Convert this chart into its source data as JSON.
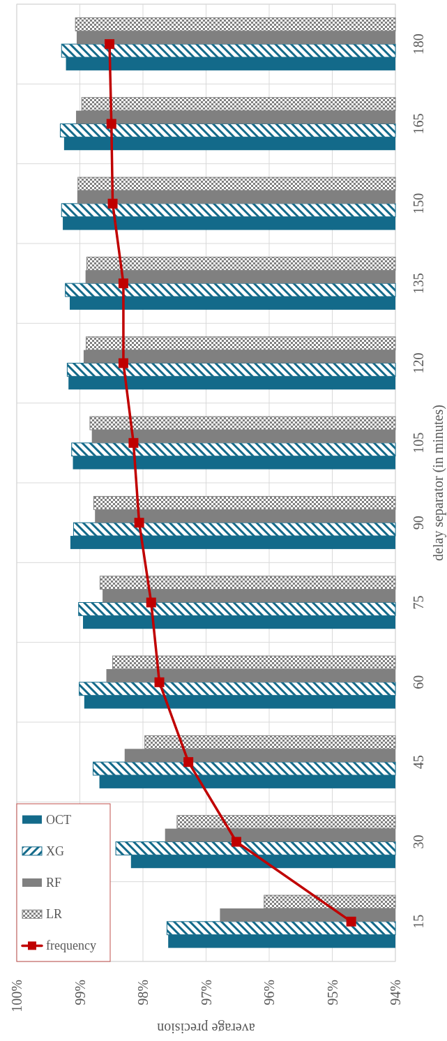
{
  "chart_data": {
    "type": "bar",
    "orientation": "horizontal",
    "xlabel": "average precision",
    "ylabel": "delay separator (in minutes)",
    "categories": [
      "180",
      "165",
      "150",
      "135",
      "120",
      "105",
      "90",
      "75",
      "60",
      "45",
      "30",
      "15"
    ],
    "series": [
      {
        "name": "OCT",
        "color": "#136a8a",
        "values": [
          99.22,
          99.25,
          99.27,
          99.16,
          99.18,
          99.11,
          99.15,
          98.95,
          98.93,
          98.69,
          98.19,
          97.6
        ]
      },
      {
        "name": "XG",
        "color": "#136a8a",
        "values": [
          99.29,
          99.31,
          99.29,
          99.23,
          99.2,
          99.13,
          99.1,
          99.02,
          99.01,
          98.79,
          98.43,
          97.62
        ]
      },
      {
        "name": "RF",
        "color": "#808080",
        "values": [
          99.05,
          99.06,
          99.04,
          98.91,
          98.94,
          98.81,
          98.76,
          98.64,
          98.58,
          98.29,
          97.65,
          96.78
        ]
      },
      {
        "name": "LR",
        "color": "#808080",
        "values": [
          99.07,
          98.97,
          99.03,
          98.89,
          98.9,
          98.84,
          98.78,
          98.68,
          98.48,
          97.97,
          97.46,
          96.08
        ]
      },
      {
        "name": "frequency",
        "type": "line",
        "color": "#c00000",
        "values": [
          98.53,
          98.5,
          98.48,
          98.31,
          98.31,
          98.15,
          98.06,
          97.87,
          97.74,
          97.28,
          96.52,
          94.7
        ]
      }
    ],
    "xlim": [
      100,
      94
    ],
    "xticks": [
      {
        "value": 100,
        "label": "100%"
      },
      {
        "value": 99,
        "label": "99%"
      },
      {
        "value": 98,
        "label": "98%"
      },
      {
        "value": 97,
        "label": "97%"
      },
      {
        "value": 96,
        "label": "96%"
      },
      {
        "value": 95,
        "label": "95%"
      },
      {
        "value": 94,
        "label": "94%"
      }
    ],
    "grid": true,
    "legend": "bottom left",
    "marker": "square"
  }
}
